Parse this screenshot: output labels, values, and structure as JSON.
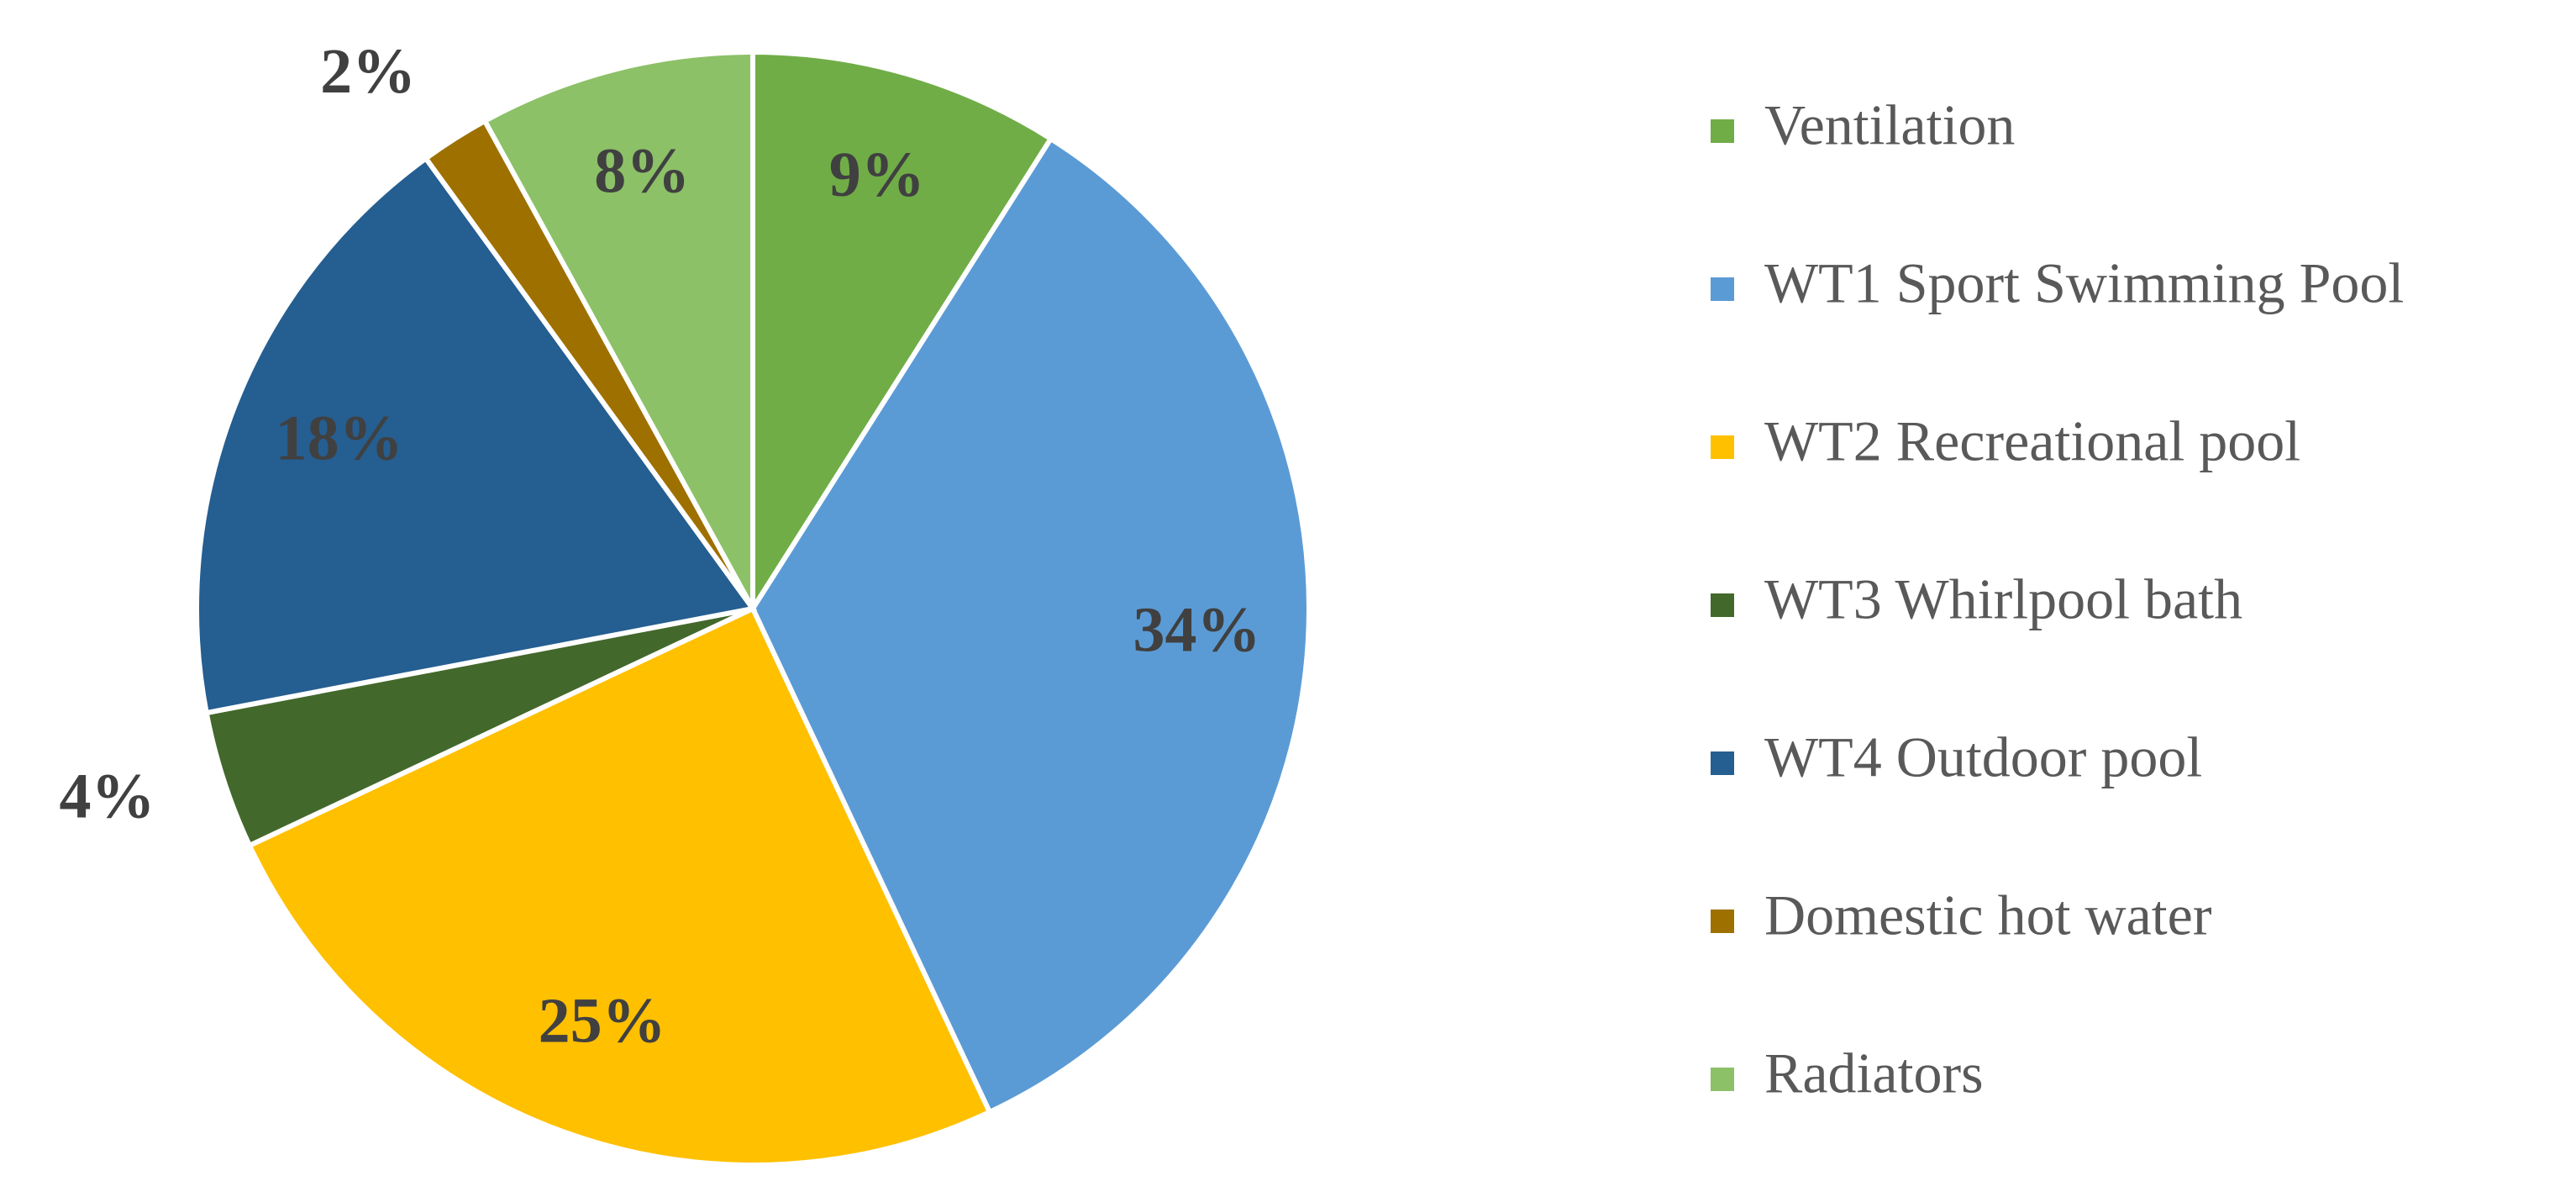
{
  "chart_data": {
    "type": "pie",
    "categories": [
      "Ventilation",
      "WT1 Sport Swimming Pool",
      "WT2 Recreational pool",
      "WT3 Whirlpool bath",
      "WT4 Outdoor pool",
      "Domestic hot water",
      "Radiators"
    ],
    "values": [
      9,
      34,
      25,
      4,
      18,
      2,
      8
    ],
    "value_labels": [
      "9%",
      "34%",
      "25%",
      "4%",
      "18%",
      "2%",
      "8%"
    ],
    "colors": [
      "#70ad47",
      "#5b9bd5",
      "#ffc000",
      "#43682b",
      "#255e91",
      "#9e7000",
      "#8cc168"
    ],
    "legend": "right"
  }
}
